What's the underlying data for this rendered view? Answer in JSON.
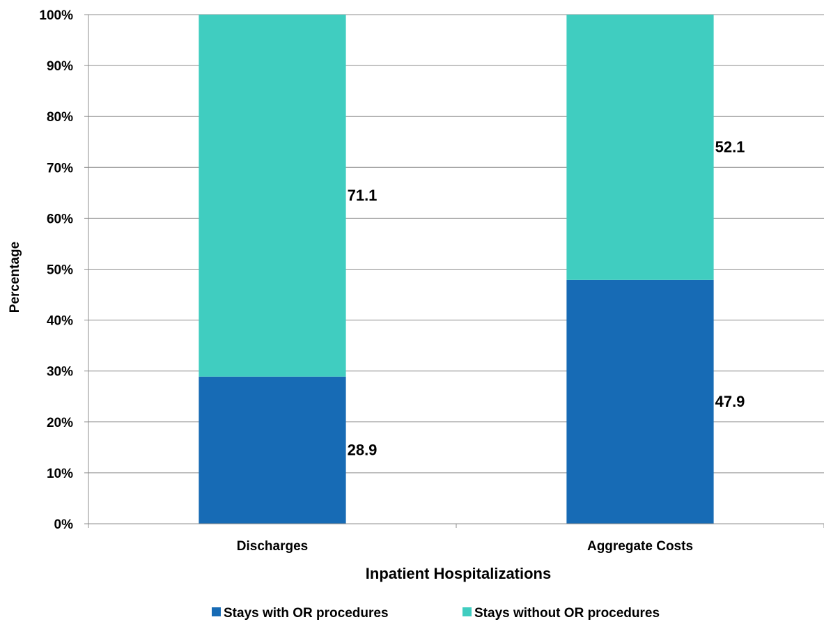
{
  "chart_data": {
    "type": "bar",
    "stacked": true,
    "title": "",
    "xlabel": "Inpatient Hospitalizations",
    "ylabel": "Percentage",
    "ylim": [
      0,
      100
    ],
    "yticks": [
      "0%",
      "10%",
      "20%",
      "30%",
      "40%",
      "50%",
      "60%",
      "70%",
      "80%",
      "90%",
      "100%"
    ],
    "grid": true,
    "legend_position": "bottom",
    "categories": [
      "Discharges",
      "Aggregate Costs"
    ],
    "series": [
      {
        "name": "Stays with OR procedures",
        "color": "#176BB5",
        "values": [
          28.9,
          47.9
        ],
        "labels": [
          "28.9",
          "47.9"
        ]
      },
      {
        "name": "Stays without OR procedures",
        "color": "#40CDC0",
        "values": [
          71.1,
          52.1
        ],
        "labels": [
          "71.1",
          "52.1"
        ]
      }
    ]
  }
}
